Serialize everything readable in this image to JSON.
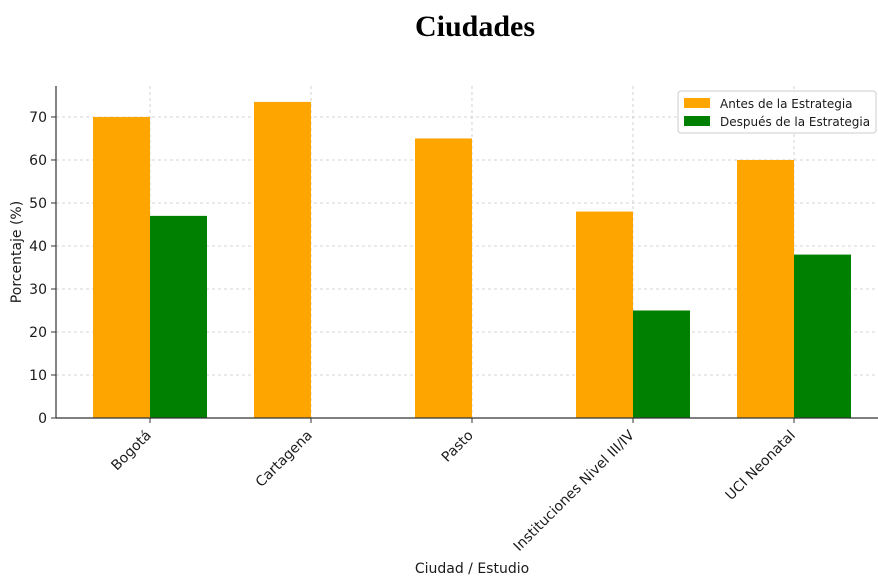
{
  "chart_data": {
    "type": "bar",
    "title": "Ciudades",
    "xlabel": "Ciudad / Estudio",
    "ylabel": "Porcentaje (%)",
    "categories": [
      "Bogotá",
      "Cartagena",
      "Pasto",
      "Instituciones Nivel III/IV",
      "UCI Neonatal"
    ],
    "series": [
      {
        "name": "Antes de la Estrategia",
        "color": "#FFA500",
        "values": [
          70,
          73.5,
          65,
          48,
          60
        ]
      },
      {
        "name": "Después de la Estrategia",
        "color": "#008000",
        "values": [
          47,
          null,
          null,
          25,
          38
        ]
      }
    ],
    "yticks": [
      0,
      10,
      20,
      30,
      40,
      50,
      60,
      70
    ],
    "ylim": [
      0,
      77.2
    ],
    "grid": true,
    "legend_position": "top-right"
  }
}
